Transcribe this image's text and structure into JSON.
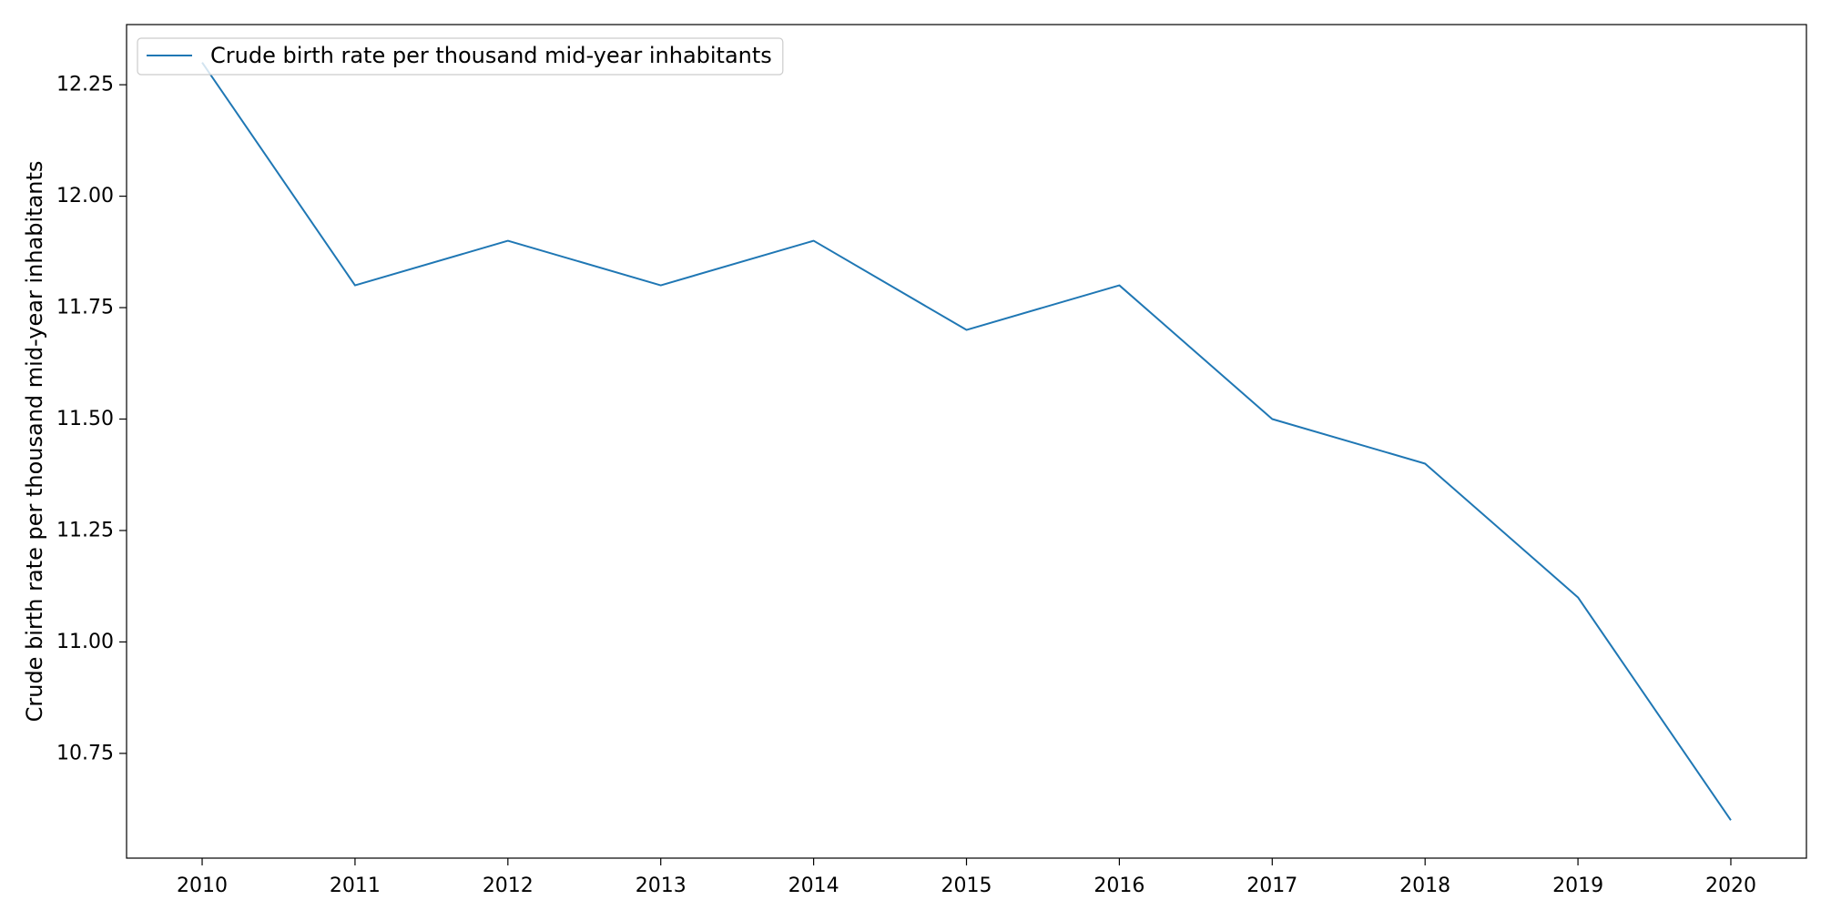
{
  "chart_data": {
    "type": "line",
    "title": "",
    "xlabel": "",
    "ylabel": "Crude birth rate per thousand mid-year inhabitants",
    "x": [
      "2010",
      "2011",
      "2012",
      "2013",
      "2014",
      "2015",
      "2016",
      "2017",
      "2018",
      "2019",
      "2020"
    ],
    "series": [
      {
        "name": "Crude birth rate per thousand mid-year inhabitants",
        "color": "#1f77b4",
        "values": [
          12.3,
          11.8,
          11.9,
          11.8,
          11.9,
          11.7,
          11.8,
          11.5,
          11.4,
          11.1,
          10.6
        ]
      }
    ],
    "ylim": [
      10.515,
      12.385
    ],
    "y_ticks": [
      "10.75",
      "11.00",
      "11.25",
      "11.50",
      "11.75",
      "12.00",
      "12.25"
    ],
    "grid": false,
    "legend": "upper left"
  }
}
